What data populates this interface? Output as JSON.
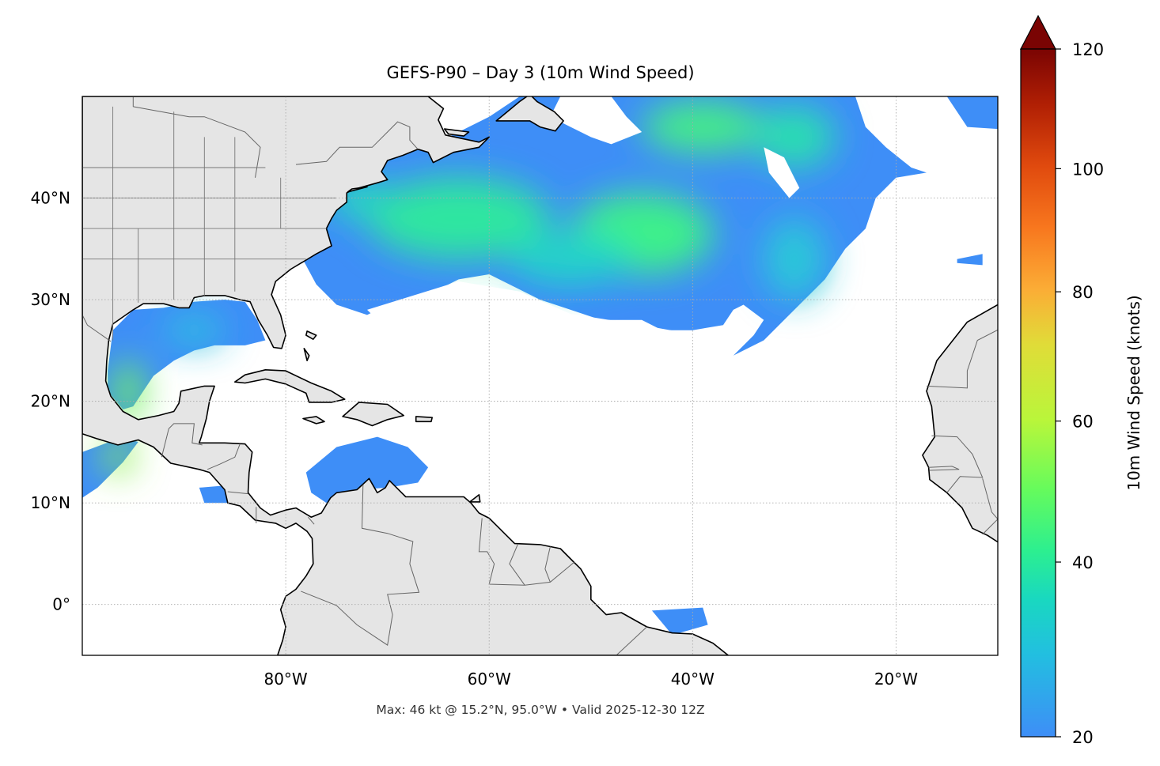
{
  "title": "GEFS-P90 – Day 3 (10m Wind Speed)",
  "footer": "Max: 46 kt @ 15.2°N, 95.0°W • Valid 2025-12-30 12Z",
  "map": {
    "projection": "PlateCarree",
    "lon_range": [
      -100,
      -10
    ],
    "lat_range": [
      -5,
      50
    ],
    "gridlines": "dotted",
    "x_ticks": [
      {
        "lon": -80,
        "label": "80°W"
      },
      {
        "lon": -60,
        "label": "60°W"
      },
      {
        "lon": -40,
        "label": "40°W"
      },
      {
        "lon": -20,
        "label": "20°W"
      }
    ],
    "y_ticks": [
      {
        "lat": 40,
        "label": "40°N"
      },
      {
        "lat": 30,
        "label": "30°N"
      },
      {
        "lat": 20,
        "label": "20°N"
      },
      {
        "lat": 10,
        "label": "10°N"
      },
      {
        "lat": 0,
        "label": "0°"
      }
    ],
    "land_color": "#e5e5e5",
    "coast_color": "#000000",
    "max_wind": {
      "value_kt": 46,
      "lat": 15.2,
      "lon": -95.0
    }
  },
  "colorbar": {
    "label": "10m Wind Speed (knots)",
    "min": 20,
    "max": 120,
    "extend": "max",
    "colormap": "turbo-like",
    "ticks": [
      {
        "value": 20,
        "label": "20"
      },
      {
        "value": 40,
        "label": "40"
      },
      {
        "value": 60,
        "label": "60"
      },
      {
        "value": 80,
        "label": "80"
      },
      {
        "value": 100,
        "label": "100"
      },
      {
        "value": 120,
        "label": "120"
      }
    ]
  }
}
